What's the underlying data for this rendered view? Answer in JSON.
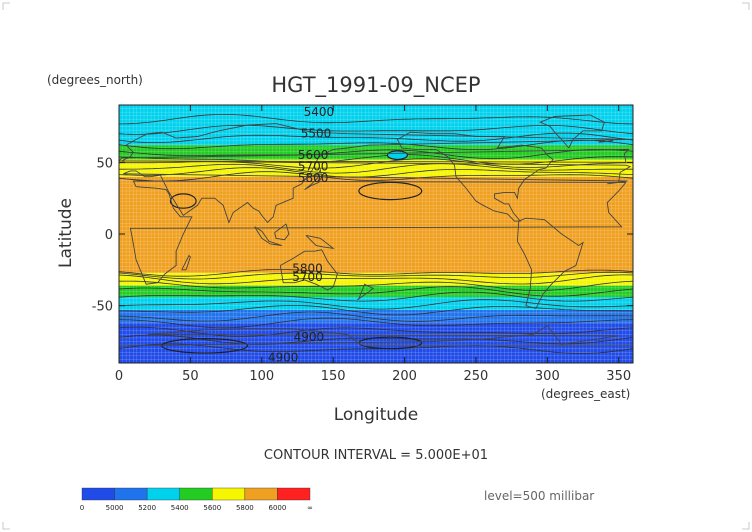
{
  "chart_data": {
    "type": "heatmap",
    "title": "HGT_1991-09_NCEP",
    "xlabel": "Longitude",
    "ylabel": "Latitude",
    "x_units": "(degrees_east)",
    "y_units": "(degrees_north)",
    "xlim": [
      0,
      360
    ],
    "ylim": [
      -90,
      90
    ],
    "x_ticks": [
      "0",
      "50",
      "100",
      "150",
      "200",
      "250",
      "300",
      "350"
    ],
    "y_ticks": [
      "50",
      "0",
      "-50"
    ],
    "contour_interval_text": "CONTOUR INTERVAL = 5.000E+01",
    "level_text": "level=500 millibar",
    "contour_labels": [
      {
        "text": "5400",
        "lon": 140,
        "lat": 85
      },
      {
        "text": "5500",
        "lon": 138,
        "lat": 70
      },
      {
        "text": "5600",
        "lon": 136,
        "lat": 55
      },
      {
        "text": "5700",
        "lon": 136,
        "lat": 47
      },
      {
        "text": "5800",
        "lon": 136,
        "lat": 39
      },
      {
        "text": "5800",
        "lon": 132,
        "lat": -24
      },
      {
        "text": "5700",
        "lon": 132,
        "lat": -30
      },
      {
        "text": "4900",
        "lon": 133,
        "lat": -72
      },
      {
        "text": "4900",
        "lon": 115,
        "lat": -86
      }
    ],
    "bands": [
      {
        "min_lat": -90,
        "max_lat": -62,
        "color": "#1f4be8"
      },
      {
        "min_lat": -62,
        "max_lat": -53,
        "color": "#1f74ee"
      },
      {
        "min_lat": -53,
        "max_lat": -44,
        "color": "#00d2ee"
      },
      {
        "min_lat": -44,
        "max_lat": -36,
        "color": "#22cc22"
      },
      {
        "min_lat": -36,
        "max_lat": -27,
        "color": "#f6f600"
      },
      {
        "min_lat": -27,
        "max_lat": 40,
        "color": "#f0a020"
      },
      {
        "min_lat": 40,
        "max_lat": 52,
        "color": "#f6f600"
      },
      {
        "min_lat": 52,
        "max_lat": 62,
        "color": "#22cc22"
      },
      {
        "min_lat": 62,
        "max_lat": 90,
        "color": "#00d2ee"
      }
    ]
  },
  "colorbar": {
    "labels": [
      "0",
      "5000",
      "5200",
      "5400",
      "5600",
      "5800",
      "6000",
      "∞"
    ],
    "colors": [
      "#1f4be8",
      "#1f74ee",
      "#00d2ee",
      "#22cc22",
      "#f6f600",
      "#f0a020",
      "#ff2020"
    ]
  },
  "colors": {
    "gridline": "#ffffff",
    "contour": "#333333",
    "coast": "#444444"
  }
}
